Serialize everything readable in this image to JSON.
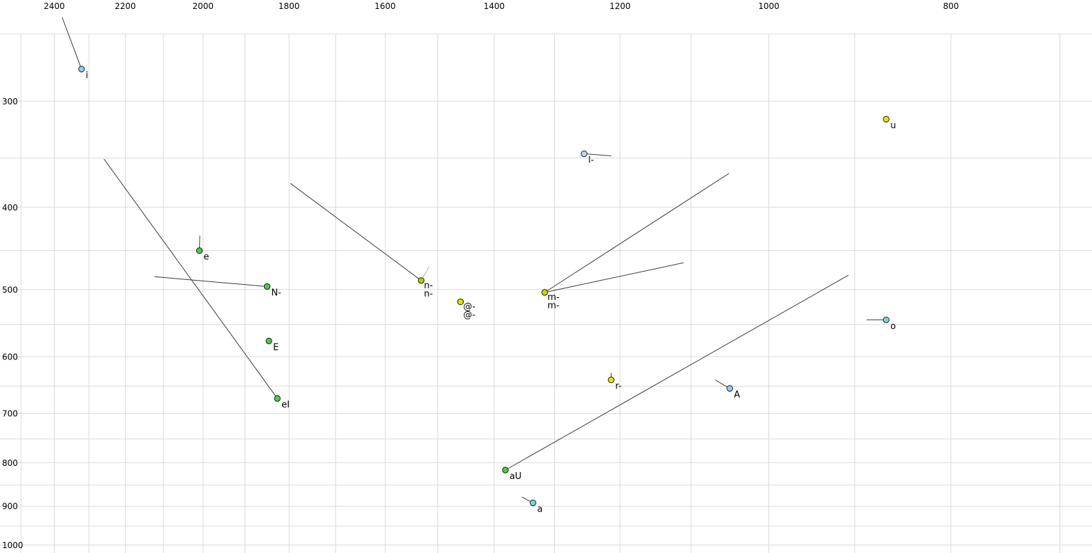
{
  "chart_data": {
    "type": "scatter",
    "title": "",
    "xlabel": "",
    "ylabel": "",
    "description": "Vowel formant plot (F2 horizontal reversed log axis, F1 vertical reversed log axis) with phonetic labels and formant-movement trails",
    "x_axis": {
      "scale": "log",
      "reversed": true,
      "unit": "Hz",
      "tick_labels": [
        2400,
        2200,
        2000,
        1800,
        1600,
        1400,
        1200,
        1000,
        800
      ],
      "gridline_step": 100,
      "gridline_min": 700,
      "gridline_max": 2500,
      "range": [
        2565,
        673
      ]
    },
    "y_axis": {
      "scale": "log",
      "reversed": true,
      "unit": "Hz",
      "tick_labels": [
        300,
        400,
        500,
        600,
        700,
        800,
        900,
        1000
      ],
      "gridline_step": 50,
      "gridline_min": 250,
      "gridline_max": 1000,
      "range": [
        228,
        1022
      ]
    },
    "grid": true,
    "grid_color": "#d9d9d9",
    "trail_color": "#3a3a3a",
    "ghost_color": "#b0b0b0",
    "marker_stroke": "#1a1a1a",
    "points": [
      {
        "label": "i",
        "f2": 2321,
        "f1": 275,
        "color": "#9ec7e8",
        "trails": [
          [
            2377,
            239
          ]
        ],
        "ghost_trails": []
      },
      {
        "label": "u",
        "f2": 866,
        "f1": 315,
        "color": "#e6e600",
        "trails": [],
        "ghost_trails": []
      },
      {
        "label": "l-",
        "f2": 1254,
        "f1": 346,
        "color": "#bcd6ee",
        "trails": [
          [
            1213,
            348
          ]
        ],
        "ghost_trails": []
      },
      {
        "label": "e",
        "f2": 2009,
        "f1": 450,
        "color": "#4ec94e",
        "trails": [
          [
            2008,
            432
          ]
        ],
        "ghost_trails": []
      },
      {
        "label": "N-",
        "f2": 1849,
        "f1": 496,
        "color": "#4ec94e",
        "trails": [
          [
            2123,
            483
          ]
        ],
        "ghost_trails": []
      },
      {
        "label": "eI",
        "f2": 1826,
        "f1": 672,
        "color": "#4ec94e",
        "trails": [
          [
            2258,
            351
          ]
        ],
        "ghost_trails": []
      },
      {
        "label": "E",
        "f2": 1845,
        "f1": 575,
        "color": "#4ec94e",
        "trails": [],
        "ghost_trails": []
      },
      {
        "label": "n-",
        "ghost_label": "n-",
        "f2": 1531,
        "f1": 488,
        "color": "#a8d400",
        "trails": [
          [
            1797,
            375
          ]
        ],
        "ghost_trails": [
          [
            1516,
            470
          ]
        ]
      },
      {
        "label": "@-",
        "ghost_label": "@-",
        "f2": 1459,
        "f1": 517,
        "color": "#e0e000",
        "trails": [],
        "ghost_trails": []
      },
      {
        "label": "m-",
        "ghost_label": "m-",
        "f2": 1316,
        "f1": 504,
        "color": "#cdd800",
        "trails": [
          [
            1050,
            365
          ],
          [
            1110,
            465
          ]
        ],
        "ghost_trails": []
      },
      {
        "label": "aU",
        "f2": 1381,
        "f1": 816,
        "color": "#4ec94e",
        "trails": [
          [
            907,
            481
          ]
        ],
        "ghost_trails": []
      },
      {
        "label": "r-",
        "f2": 1213,
        "f1": 639,
        "color": "#e6e600",
        "trails": [
          [
            1213,
            627
          ]
        ],
        "ghost_trails": []
      },
      {
        "label": "A",
        "f2": 1049,
        "f1": 654,
        "color": "#9ec7e8",
        "trails": [
          [
            1068,
            639
          ]
        ],
        "ghost_trails": []
      },
      {
        "label": "o",
        "f2": 866,
        "f1": 543,
        "color": "#7fd4d4",
        "trails": [
          [
            887,
            543
          ]
        ],
        "ghost_trails": []
      },
      {
        "label": "a",
        "f2": 1335,
        "f1": 892,
        "color": "#7fd4d4",
        "trails": [
          [
            1353,
            878
          ]
        ],
        "ghost_trails": []
      }
    ]
  }
}
